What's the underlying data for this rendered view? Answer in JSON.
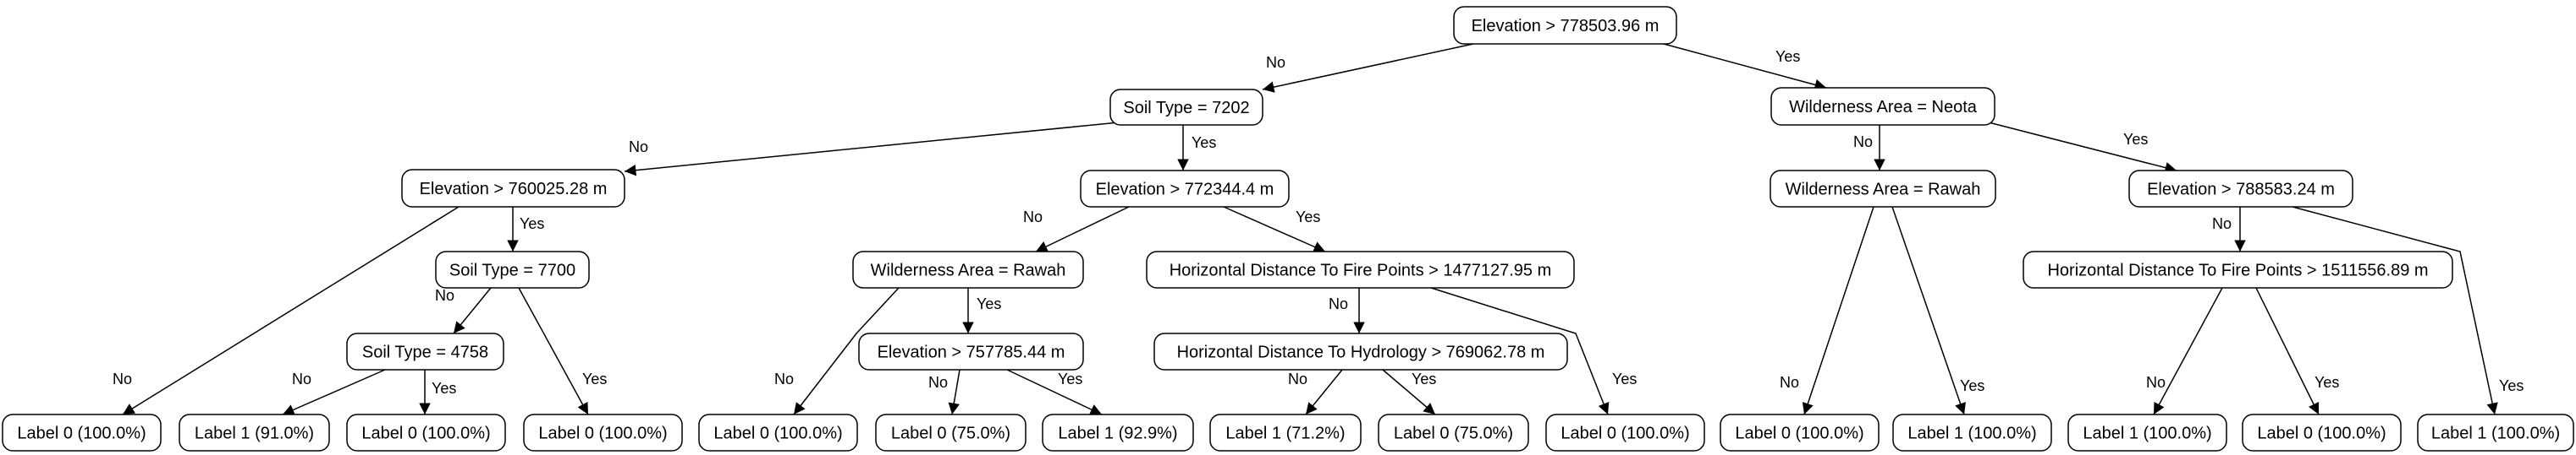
{
  "tree": {
    "nodes": [
      {
        "id": "n0",
        "text": "Elevation > 778503.96 m"
      },
      {
        "id": "n1",
        "text": "Soil Type = 7202"
      },
      {
        "id": "n2",
        "text": "Wilderness Area = Neota"
      },
      {
        "id": "n3",
        "text": "Elevation > 760025.28 m"
      },
      {
        "id": "n4",
        "text": "Elevation > 772344.4 m"
      },
      {
        "id": "n5",
        "text": "Wilderness Area = Rawah"
      },
      {
        "id": "n6",
        "text": "Elevation > 788583.24 m"
      },
      {
        "id": "n7",
        "text": "Soil Type = 7700"
      },
      {
        "id": "n8",
        "text": "Wilderness Area = Rawah"
      },
      {
        "id": "n9",
        "text": "Horizontal Distance To Fire Points > 1477127.95 m"
      },
      {
        "id": "n10",
        "text": "Horizontal Distance To Fire Points > 1511556.89 m"
      },
      {
        "id": "n11",
        "text": "Soil Type = 4758"
      },
      {
        "id": "n12",
        "text": "Elevation > 757785.44 m"
      },
      {
        "id": "n13",
        "text": "Horizontal Distance To Hydrology > 769062.78 m"
      },
      {
        "id": "l0",
        "text": "Label 0 (100.0%)"
      },
      {
        "id": "l1",
        "text": "Label 1 (91.0%)"
      },
      {
        "id": "l2",
        "text": "Label 0 (100.0%)"
      },
      {
        "id": "l3",
        "text": "Label 0 (100.0%)"
      },
      {
        "id": "l4",
        "text": "Label 0 (100.0%)"
      },
      {
        "id": "l5",
        "text": "Label 0 (75.0%)"
      },
      {
        "id": "l6",
        "text": "Label 1 (92.9%)"
      },
      {
        "id": "l7",
        "text": "Label 1 (71.2%)"
      },
      {
        "id": "l8",
        "text": "Label 0 (75.0%)"
      },
      {
        "id": "l9",
        "text": "Label 0 (100.0%)"
      },
      {
        "id": "l10",
        "text": "Label 0 (100.0%)"
      },
      {
        "id": "l11",
        "text": "Label 1 (100.0%)"
      },
      {
        "id": "l12",
        "text": "Label 1 (100.0%)"
      },
      {
        "id": "l13",
        "text": "Label 0 (100.0%)"
      },
      {
        "id": "l14",
        "text": "Label 1 (100.0%)"
      }
    ],
    "edges": [
      {
        "from": "n0",
        "to": "n1",
        "label": "No"
      },
      {
        "from": "n0",
        "to": "n2",
        "label": "Yes"
      },
      {
        "from": "n1",
        "to": "n3",
        "label": "No"
      },
      {
        "from": "n1",
        "to": "n4",
        "label": "Yes"
      },
      {
        "from": "n2",
        "to": "n5",
        "label": "No"
      },
      {
        "from": "n2",
        "to": "n6",
        "label": "Yes"
      },
      {
        "from": "n3",
        "to": "l0",
        "label": "No"
      },
      {
        "from": "n3",
        "to": "n7",
        "label": "Yes"
      },
      {
        "from": "n7",
        "to": "n11",
        "label": "No"
      },
      {
        "from": "n7",
        "to": "l3",
        "label": "Yes"
      },
      {
        "from": "n11",
        "to": "l1",
        "label": "No"
      },
      {
        "from": "n11",
        "to": "l2",
        "label": "Yes"
      },
      {
        "from": "n4",
        "to": "n8",
        "label": "No"
      },
      {
        "from": "n4",
        "to": "n9",
        "label": "Yes"
      },
      {
        "from": "n8",
        "to": "l4",
        "label": "No"
      },
      {
        "from": "n8",
        "to": "n12",
        "label": "Yes"
      },
      {
        "from": "n12",
        "to": "l5",
        "label": "No"
      },
      {
        "from": "n12",
        "to": "l6",
        "label": "Yes"
      },
      {
        "from": "n9",
        "to": "n13",
        "label": "No"
      },
      {
        "from": "n9",
        "to": "l9",
        "label": "Yes"
      },
      {
        "from": "n13",
        "to": "l7",
        "label": "No"
      },
      {
        "from": "n13",
        "to": "l8",
        "label": "Yes"
      },
      {
        "from": "n5",
        "to": "l10",
        "label": "No"
      },
      {
        "from": "n5",
        "to": "l11",
        "label": "Yes"
      },
      {
        "from": "n6",
        "to": "n10",
        "label": "No"
      },
      {
        "from": "n6",
        "to": "l14",
        "label": "Yes"
      },
      {
        "from": "n10",
        "to": "l12",
        "label": "No"
      },
      {
        "from": "n10",
        "to": "l13",
        "label": "Yes"
      }
    ]
  }
}
